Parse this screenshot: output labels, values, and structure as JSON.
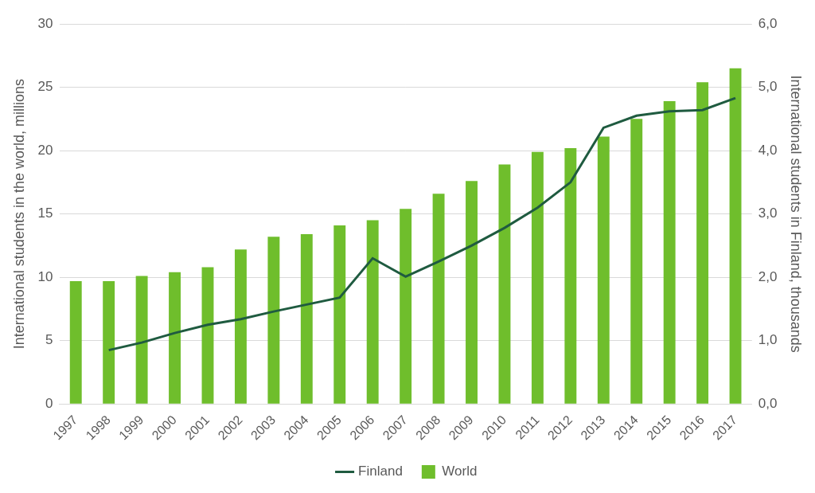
{
  "chart_data": {
    "type": "bar",
    "categories": [
      "1997",
      "1998",
      "1999",
      "2000",
      "2001",
      "2002",
      "2003",
      "2004",
      "2005",
      "2006",
      "2007",
      "2008",
      "2009",
      "2010",
      "2011",
      "2012",
      "2013",
      "2014",
      "2015",
      "2016",
      "2017"
    ],
    "series": [
      {
        "name": "World",
        "type": "bar",
        "color": "#6fbe2c",
        "axis": "y",
        "values": [
          9.7,
          9.7,
          10.1,
          10.4,
          10.8,
          12.2,
          13.2,
          13.4,
          14.1,
          14.5,
          15.4,
          16.6,
          17.6,
          18.9,
          19.9,
          20.2,
          21.1,
          22.5,
          23.9,
          25.4,
          26.5
        ]
      },
      {
        "name": "Finland",
        "type": "line",
        "color": "#1f5b40",
        "axis": "y2",
        "marker": "none",
        "line_style": "solid",
        "values": [
          null,
          0.85,
          0.97,
          1.12,
          1.25,
          1.34,
          1.46,
          1.57,
          1.68,
          2.3,
          2.01,
          2.25,
          2.5,
          2.78,
          3.1,
          3.5,
          4.36,
          4.55,
          4.62,
          4.64,
          4.83
        ]
      }
    ],
    "y_label": "International students in the world, millions",
    "y2_label": "International students in Finland, thousands",
    "ylim": [
      0,
      30
    ],
    "yticks": [
      0,
      5,
      10,
      15,
      20,
      25,
      30
    ],
    "y2lim": [
      0,
      6
    ],
    "y2ticks": [
      {
        "value": 0,
        "label": "0,0"
      },
      {
        "value": 1,
        "label": "1,0"
      },
      {
        "value": 2,
        "label": "2,0"
      },
      {
        "value": 3,
        "label": "3,0"
      },
      {
        "value": 4,
        "label": "4,0"
      },
      {
        "value": 5,
        "label": "5,0"
      },
      {
        "value": 6,
        "label": "6,0"
      }
    ],
    "grid": true,
    "legend": "bottom"
  }
}
